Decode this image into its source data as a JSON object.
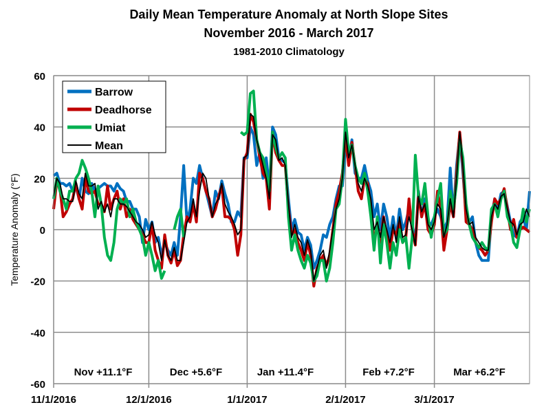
{
  "chart_data": {
    "type": "line",
    "title": "Daily Mean Temperature Anomaly at North Slope Sites",
    "subtitle": "November 2016 - March 2017",
    "subtitle2": "1981-2010 Climatology",
    "ylabel": "Temperature Anomaly (°F)",
    "xlabel": "",
    "ylim": [
      -60,
      60
    ],
    "yticks": [
      -60,
      -40,
      -20,
      0,
      20,
      40,
      60
    ],
    "x_start": "11/1/2016",
    "x_end": "3/31/2017",
    "xtick_labels": [
      "11/1/2016",
      "12/1/2016",
      "1/1/2017",
      "2/1/2017",
      "3/1/2017"
    ],
    "grid": true,
    "legend_position": "top-left",
    "month_annotations": [
      "Nov  +11.1°F",
      "Dec +5.6°F",
      "Jan +11.4°F",
      "Feb +7.2°F",
      "Mar +6.2°F"
    ],
    "series": [
      {
        "name": "Barrow",
        "color": "#0070C0",
        "values": [
          21,
          22,
          18,
          18,
          17,
          18,
          15,
          17,
          12,
          20,
          15,
          14,
          18,
          15,
          16,
          17,
          18,
          17,
          17,
          15,
          18,
          16,
          15,
          11,
          11,
          8,
          8,
          5,
          -5,
          4,
          0,
          3,
          -5,
          -3,
          -10,
          -5,
          -8,
          -10,
          -5,
          -10,
          5,
          25,
          3,
          8,
          20,
          18,
          25,
          20,
          15,
          10,
          5,
          15,
          12,
          19,
          14,
          10,
          3,
          3,
          7,
          5,
          28,
          28,
          40,
          37,
          25,
          30,
          20,
          28,
          16,
          40,
          37,
          28,
          27,
          26,
          12,
          0,
          4,
          -1,
          -2,
          -8,
          -3,
          -6,
          -15,
          -12,
          -8,
          -2,
          -3,
          2,
          5,
          12,
          17,
          17,
          32,
          27,
          35,
          22,
          20,
          20,
          25,
          19,
          15,
          5,
          10,
          0,
          10,
          5,
          -3,
          5,
          -3,
          8,
          0,
          3,
          8,
          2,
          -5,
          15,
          5,
          12,
          3,
          2,
          5,
          8,
          5,
          0,
          3,
          24,
          5,
          25,
          37,
          22,
          6,
          3,
          5,
          -5,
          -10,
          -12,
          -12,
          -12,
          5,
          12,
          8,
          14,
          15,
          9,
          3,
          -2,
          -3,
          3,
          5,
          0,
          15
        ]
      },
      {
        "name": "Deadhorse",
        "color": "#C00000",
        "values": [
          8,
          19,
          16,
          5,
          7,
          10,
          12,
          18,
          12,
          8,
          20,
          15,
          14,
          15,
          10,
          10,
          7,
          17,
          8,
          12,
          15,
          8,
          12,
          5,
          8,
          4,
          2,
          0,
          -2,
          -5,
          -5,
          2,
          -8,
          -12,
          -15,
          -2,
          -10,
          -13,
          -8,
          -14,
          -12,
          -2,
          5,
          3,
          10,
          3,
          22,
          20,
          15,
          12,
          5,
          8,
          13,
          17,
          5,
          5,
          4,
          0,
          -10,
          -2,
          27,
          30,
          45,
          42,
          35,
          28,
          22,
          20,
          8,
          38,
          30,
          27,
          25,
          25,
          8,
          -2,
          0,
          -5,
          -8,
          -12,
          -5,
          -10,
          -22,
          -15,
          -12,
          -10,
          -14,
          -10,
          0,
          10,
          15,
          22,
          36,
          25,
          34,
          25,
          15,
          12,
          20,
          18,
          8,
          -5,
          2,
          -5,
          5,
          -3,
          -8,
          0,
          -2,
          3,
          -5,
          -3,
          12,
          0,
          -6,
          14,
          5,
          10,
          0,
          -2,
          2,
          15,
          8,
          -8,
          0,
          10,
          5,
          22,
          38,
          25,
          3,
          2,
          0,
          -5,
          -7,
          -8,
          -10,
          -8,
          3,
          12,
          10,
          12,
          16,
          8,
          0,
          4,
          -3,
          0,
          1,
          0,
          -1
        ]
      },
      {
        "name": "Umiat",
        "color": "#00B050",
        "values": [
          12,
          20,
          15,
          12,
          8,
          15,
          15,
          20,
          22,
          27,
          24,
          20,
          15,
          5,
          17,
          10,
          -3,
          -10,
          -12,
          -5,
          8,
          12,
          10,
          12,
          5,
          8,
          3,
          0,
          -3,
          -10,
          -5,
          -10,
          -16,
          -12,
          -19,
          -16,
          null,
          null,
          0,
          5,
          8,
          -3,
          null,
          null,
          null,
          null,
          null,
          null,
          null,
          null,
          null,
          null,
          null,
          null,
          null,
          null,
          null,
          null,
          null,
          38,
          37,
          38,
          53,
          54,
          35,
          30,
          28,
          22,
          15,
          38,
          32,
          28,
          30,
          28,
          5,
          -8,
          -2,
          -8,
          -12,
          -15,
          -10,
          -13,
          -20,
          -18,
          -12,
          -12,
          -20,
          -15,
          -5,
          8,
          10,
          20,
          43,
          30,
          33,
          25,
          20,
          18,
          22,
          15,
          5,
          -8,
          5,
          -13,
          2,
          -5,
          -15,
          -5,
          -10,
          0,
          -5,
          -3,
          -15,
          -3,
          29,
          13,
          10,
          18,
          5,
          -3,
          5,
          12,
          18,
          -2,
          0,
          15,
          8,
          18,
          35,
          28,
          10,
          2,
          -3,
          -5,
          -7,
          -5,
          -7,
          -8,
          8,
          10,
          5,
          12,
          15,
          5,
          2,
          -5,
          -7,
          0,
          8,
          3,
          8
        ]
      },
      {
        "name": "Mean",
        "color": "#000000",
        "values": [
          13,
          20,
          18,
          12,
          12,
          11,
          11,
          19,
          14,
          12,
          22,
          17,
          17,
          18,
          8,
          11,
          7,
          10,
          5,
          12,
          12,
          10,
          10,
          9,
          7,
          5,
          3,
          2,
          0,
          -3,
          -2,
          3,
          -2,
          -5,
          -12,
          -4,
          -10,
          -12,
          -7,
          -12,
          -12,
          -5,
          3,
          5,
          12,
          5,
          15,
          22,
          20,
          12,
          5,
          10,
          12,
          18,
          10,
          7,
          5,
          2,
          -2,
          0,
          28,
          29,
          45,
          44,
          35,
          30,
          25,
          20,
          12,
          37,
          35,
          27,
          28,
          25,
          10,
          -3,
          2,
          -3,
          -5,
          -10,
          -4,
          -8,
          -20,
          -15,
          -10,
          -8,
          -15,
          -8,
          0,
          8,
          12,
          20,
          38,
          28,
          33,
          25,
          18,
          15,
          20,
          17,
          12,
          0,
          3,
          -3,
          5,
          0,
          -5,
          2,
          -5,
          5,
          -3,
          -2,
          5,
          0,
          -6,
          13,
          7,
          10,
          2,
          0,
          3,
          10,
          8,
          -3,
          2,
          12,
          5,
          20,
          38,
          25,
          8,
          2,
          3,
          -3,
          -5,
          -7,
          -8,
          -8,
          5,
          10,
          8,
          13,
          14,
          8,
          3,
          2,
          -2,
          2,
          3,
          8,
          5
        ]
      }
    ]
  }
}
